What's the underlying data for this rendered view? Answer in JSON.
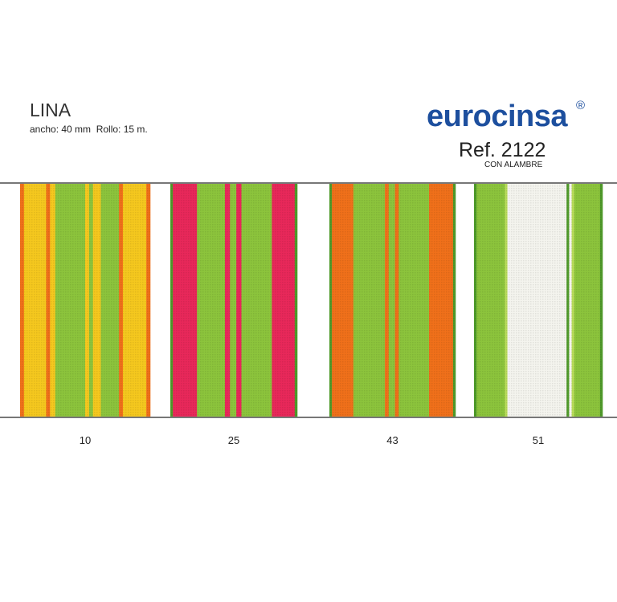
{
  "header": {
    "title": "LINA",
    "subtitle": "ancho: 40 mm  Rollo: 15 m.",
    "brand": "eurocinsa",
    "brand_mark": "®",
    "reference": "Ref. 2122",
    "reference_note": "CON ALAMBRE"
  },
  "swatches": [
    {
      "label": "10"
    },
    {
      "label": "25"
    },
    {
      "label": "43"
    },
    {
      "label": "51"
    }
  ]
}
